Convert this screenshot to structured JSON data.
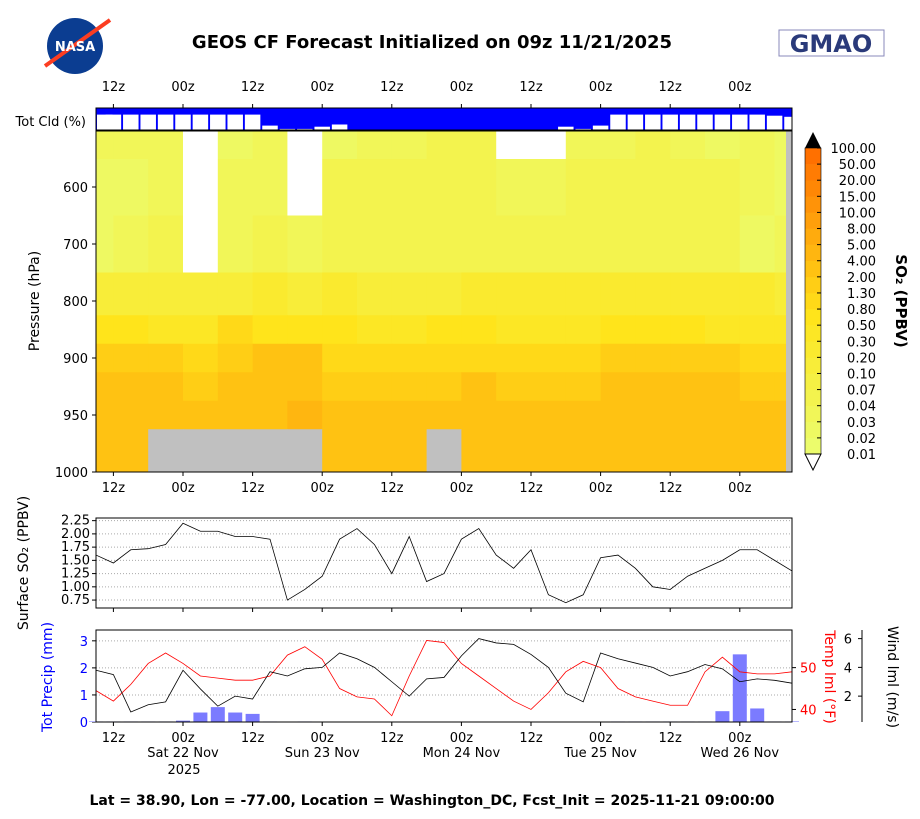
{
  "header": {
    "title": "GEOS CF Forecast Initialized on 09z 11/21/2025",
    "left_logo": "NASA",
    "right_logo": "GMAO"
  },
  "footer": "Lat = 38.90, Lon = -77.00, Location = Washington_DC, Fcst_Init = 2025-11-21 09:00:00",
  "colors": {
    "cloud": "#0000ff",
    "precip": "#7b7bff",
    "temp": "#ff0000",
    "wind": "#000000",
    "terrain": "#c0c0c0",
    "axis_blue": "#0000ff",
    "axis_red": "#ff0000"
  },
  "time_ticks": [
    "12z",
    "00z",
    "12z",
    "00z",
    "12z",
    "00z",
    "12z",
    "00z",
    "12z",
    "00z"
  ],
  "date_labels": [
    "Sat 22 Nov",
    "Sun 23 Nov",
    "Mon 24 Nov",
    "Tue 25 Nov",
    "Wed 26 Nov"
  ],
  "year_label": "2025",
  "chart_data": [
    {
      "type": "bar",
      "title": "Tot Cld (%)",
      "x_start": "2025-11-21 09z",
      "x_step_hours": 3,
      "values": [
        30,
        30,
        30,
        30,
        30,
        30,
        30,
        30,
        30,
        30,
        80,
        95,
        95,
        85,
        75,
        100,
        100,
        100,
        100,
        100,
        100,
        100,
        100,
        100,
        100,
        100,
        100,
        85,
        95,
        80,
        30,
        30,
        30,
        30,
        30,
        30,
        30,
        30,
        30,
        35,
        40
      ]
    },
    {
      "type": "heatmap",
      "ylabel": "Pressure (hPa)",
      "yticks": [
        600,
        700,
        800,
        900,
        950,
        1000
      ],
      "colorbar_label": "SO₂ (PPBV)",
      "levels": [
        0.01,
        0.02,
        0.03,
        0.04,
        0.07,
        0.1,
        0.2,
        0.3,
        0.5,
        0.8,
        1.3,
        2.0,
        4.0,
        5.0,
        8.0,
        10.0,
        15.0,
        20.0,
        50.0,
        100.0
      ],
      "level_labels": [
        "0.01",
        "0.02",
        "0.03",
        "0.04",
        "0.07",
        "0.10",
        "0.20",
        "0.30",
        "0.50",
        "0.80",
        "1.30",
        "2.00",
        "4.00",
        "5.00",
        "8.00",
        "10.00",
        "15.00",
        "20.00",
        "50.00",
        "100.00"
      ],
      "x_start": "2025-11-21 09z",
      "x_step_hours": 6,
      "pressure": [
        500,
        600,
        700,
        800,
        850,
        900,
        925,
        950,
        975,
        1000
      ],
      "values": [
        [
          0.03,
          0.03,
          0.03,
          0.005,
          0.02,
          0.03,
          0.005,
          0.02,
          0.03,
          0.03,
          0.04,
          0.04,
          0.005,
          0.005,
          0.03,
          0.03,
          0.04,
          0.03,
          0.02,
          0.03,
          0.02
        ],
        [
          0.02,
          0.02,
          0.03,
          0.005,
          0.03,
          0.03,
          0.005,
          0.04,
          0.04,
          0.05,
          0.05,
          0.05,
          0.03,
          0.03,
          0.04,
          0.05,
          0.05,
          0.05,
          0.04,
          0.03,
          0.02
        ],
        [
          0.02,
          0.03,
          0.04,
          0.005,
          0.03,
          0.04,
          0.03,
          0.04,
          0.05,
          0.05,
          0.06,
          0.06,
          0.05,
          0.05,
          0.05,
          0.06,
          0.06,
          0.05,
          0.05,
          0.02,
          0.03
        ],
        [
          0.15,
          0.15,
          0.12,
          0.1,
          0.1,
          0.2,
          0.15,
          0.2,
          0.15,
          0.1,
          0.1,
          0.25,
          0.25,
          0.2,
          0.2,
          0.25,
          0.25,
          0.2,
          0.2,
          0.2,
          0.15
        ],
        [
          0.5,
          0.5,
          0.4,
          0.4,
          0.9,
          0.6,
          0.6,
          0.5,
          0.4,
          0.3,
          0.5,
          0.5,
          0.4,
          0.4,
          0.4,
          0.5,
          0.5,
          0.5,
          0.4,
          0.4,
          0.4
        ],
        [
          1.5,
          1.5,
          1.3,
          1.0,
          1.5,
          2.5,
          2,
          1.0,
          0.8,
          0.8,
          1.0,
          1.2,
          0.8,
          0.8,
          1.0,
          1.5,
          1.5,
          1.3,
          1.5,
          1.0,
          0.8
        ],
        [
          2,
          2,
          2,
          1.5,
          2,
          3,
          3,
          1.5,
          1.3,
          1.5,
          1.5,
          2,
          1.3,
          1.5,
          1.5,
          2,
          2,
          2,
          2,
          1.5,
          1.3
        ],
        [
          2.5,
          2.5,
          3,
          2,
          2.5,
          3,
          4,
          2,
          2.5,
          2.5,
          2,
          3,
          2,
          2,
          2,
          2.5,
          2.5,
          2.5,
          2.5,
          2,
          2
        ],
        [
          3,
          3.5,
          null,
          null,
          null,
          null,
          null,
          2.5,
          2.5,
          3,
          null,
          3,
          2.5,
          2.5,
          2.5,
          3,
          3,
          3,
          3,
          2.5,
          2.5
        ],
        [
          3.5,
          3.5,
          null,
          null,
          null,
          null,
          null,
          3,
          3,
          3.5,
          null,
          3.5,
          3,
          3,
          3,
          3.5,
          3.5,
          3.5,
          3.5,
          3,
          3
        ]
      ]
    },
    {
      "type": "line",
      "ylabel": "Surface SO₂ (PPBV)",
      "ylim": [
        0.6,
        2.3
      ],
      "yticks": [
        "0.75",
        "1.00",
        "1.25",
        "1.50",
        "1.75",
        "2.00",
        "2.25"
      ],
      "x_start": "2025-11-21 09z",
      "x_step_hours": 3,
      "values": [
        1.6,
        1.45,
        1.7,
        1.72,
        1.8,
        2.2,
        2.05,
        2.05,
        1.95,
        1.95,
        1.9,
        0.75,
        0.95,
        1.2,
        1.9,
        2.1,
        1.8,
        1.25,
        1.95,
        1.1,
        1.25,
        1.9,
        2.1,
        1.6,
        1.35,
        1.7,
        0.85,
        0.7,
        0.85,
        1.55,
        1.6,
        1.35,
        1.0,
        0.95,
        1.2,
        1.35,
        1.5,
        1.7,
        1.7,
        1.5,
        1.3
      ]
    },
    {
      "type": "bar+line",
      "x_start": "2025-11-21 09z",
      "x_step_hours": 3,
      "precip": {
        "ylabel": "Tot Precip (mm)",
        "ylim": [
          0,
          3.4
        ],
        "yticks": [
          "0",
          "1",
          "2",
          "3"
        ],
        "values": [
          0.02,
          0.02,
          0.02,
          0.02,
          0.02,
          0.05,
          0.35,
          0.55,
          0.35,
          0.3,
          0.02,
          0,
          0.02,
          0,
          0,
          0,
          0,
          0,
          0,
          0,
          0,
          0,
          0,
          0,
          0,
          0,
          0,
          0,
          0,
          0,
          0.02,
          0.02,
          0.02,
          0.02,
          0.02,
          0.02,
          0.4,
          2.5,
          0.5,
          0.02,
          0.02
        ]
      },
      "temp": {
        "ylabel": "Temp lml (°F)",
        "ylim": [
          37,
          59
        ],
        "yticks": [
          "40",
          "50"
        ],
        "values": [
          44.5,
          42,
          46,
          51,
          53.5,
          51,
          48,
          47.5,
          47,
          47,
          48,
          53,
          55,
          52,
          45,
          43,
          42.5,
          38.5,
          48,
          56.5,
          56,
          51,
          48,
          45,
          42,
          40,
          44,
          49,
          51.5,
          50,
          45,
          43,
          42,
          41,
          41,
          49,
          52.5,
          49,
          48.5,
          48.5,
          49
        ]
      },
      "wind": {
        "ylabel": "Wind lml (m/s)",
        "ylim": [
          0.2,
          6.6
        ],
        "yticks": [
          "2",
          "4",
          "6"
        ],
        "values": [
          3.8,
          3.5,
          0.9,
          1.4,
          1.6,
          3.8,
          2.5,
          1.3,
          2.0,
          1.8,
          3.7,
          3.4,
          3.9,
          4.0,
          5.0,
          4.6,
          4.0,
          3.0,
          2.0,
          3.2,
          3.3,
          4.8,
          6.0,
          5.7,
          5.6,
          4.9,
          4.0,
          2.2,
          1.6,
          5.0,
          4.6,
          4.3,
          4.0,
          3.4,
          3.7,
          4.2,
          3.9,
          3.0,
          3.2,
          3.1,
          2.9
        ]
      }
    }
  ]
}
